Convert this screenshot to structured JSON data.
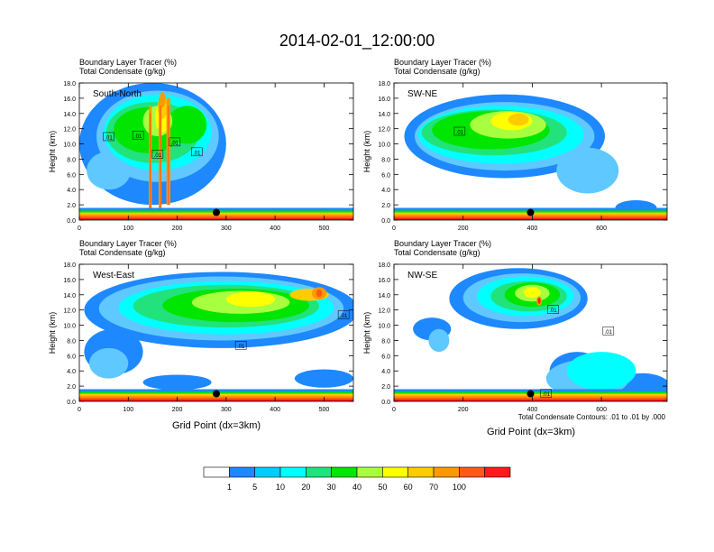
{
  "title": "2014-02-01_12:00:00",
  "panel_header_line1": "Boundary Layer Tracer   (%)",
  "panel_header_line2": "Total Condensate   (g/kg)",
  "ylabel": "Height (km)",
  "xlabel": "Grid Point (dx=3km)",
  "contour_note": "Total Condensate Contours: .01 to .01 by .000",
  "colors": {
    "blue": "#1e88ff",
    "lightblue": "#5fc8ff",
    "cyan": "#00ffff",
    "seagreen": "#22e27c",
    "green": "#00e600",
    "lime": "#a8ff40",
    "yellow": "#ffff00",
    "gold": "#ffcc00",
    "orange": "#ff9900",
    "redorange": "#ff5a1a",
    "red": "#ff1a1a"
  },
  "colorbar": {
    "labels": [
      "1",
      "5",
      "10",
      "20",
      "30",
      "40",
      "50",
      "60",
      "70",
      "100"
    ],
    "colors": [
      "#ffffff",
      "#1e88ff",
      "#00ccff",
      "#00ffff",
      "#22e27c",
      "#00e600",
      "#a8ff40",
      "#ffff00",
      "#ffcc00",
      "#ff9900",
      "#ff5a1a",
      "#ff1a1a"
    ]
  },
  "chart_data": [
    {
      "type": "heatmap",
      "name": "South-North",
      "label": "South-North",
      "x_max": 560,
      "x_ticks": [
        "0",
        "100",
        "200",
        "300",
        "400",
        "500"
      ],
      "x_tick_values": [
        0,
        100,
        200,
        300,
        400,
        500
      ],
      "y_ticks": [
        "0.0",
        "2.0",
        "4.0",
        "6.0",
        "8.0",
        "10.0",
        "12.0",
        "14.0",
        "16.0",
        "18.0"
      ],
      "y_tick_values": [
        0,
        2,
        4,
        6,
        8,
        10,
        12,
        14,
        16,
        18
      ],
      "ylim": [
        0,
        18
      ],
      "marker_x": 280,
      "contour_labels": [
        {
          "x": 60,
          "y": 10.9,
          "text": ".01"
        },
        {
          "x": 120,
          "y": 11.1,
          "text": ".01"
        },
        {
          "x": 160,
          "y": 8.6,
          "text": ".01"
        },
        {
          "x": 195,
          "y": 10.2,
          "text": ".01"
        },
        {
          "x": 240,
          "y": 8.9,
          "text": ".01"
        }
      ],
      "layers": [
        {
          "c": "blue",
          "e": [
            [
              150,
              10,
              150,
              8
            ]
          ]
        },
        {
          "c": "lightblue",
          "e": [
            [
              160,
              11,
              125,
              6
            ],
            [
              60,
              6.5,
              45,
              2.5
            ]
          ]
        },
        {
          "c": "cyan",
          "e": [
            [
              160,
              11.5,
              110,
              5
            ]
          ]
        },
        {
          "c": "seagreen",
          "e": [
            [
              150,
              11.5,
              95,
              4
            ]
          ]
        },
        {
          "c": "green",
          "e": [
            [
              140,
              11.8,
              70,
              3
            ],
            [
              220,
              12.5,
              40,
              2.5
            ]
          ]
        },
        {
          "c": "lime",
          "e": [
            [
              160,
              13,
              30,
              2
            ]
          ]
        },
        {
          "c": "yellow",
          "e": [
            [
              170,
              13.5,
              15,
              2
            ]
          ]
        },
        {
          "c": "gold",
          "e": [
            [
              170,
              14.8,
              10,
              1.5
            ]
          ]
        },
        {
          "c": "orange",
          "e": [
            [
              170,
              15.8,
              6,
              1
            ]
          ]
        },
        {
          "c": "orange",
          "s": [
            [
              142,
              148,
              1,
              15
            ],
            [
              162,
              168,
              1,
              16
            ],
            [
              178,
              186,
              2,
              16
            ]
          ]
        },
        {
          "c": "redorange",
          "s": [
            [
              144,
              146,
              1,
              14
            ],
            [
              165,
              167,
              1,
              15
            ],
            [
              181,
              183,
              2,
              15
            ]
          ]
        }
      ]
    },
    {
      "type": "heatmap",
      "name": "SW-NE",
      "label": "SW-NE",
      "x_max": 790,
      "x_ticks": [
        "0",
        "200",
        "400",
        "600"
      ],
      "x_tick_values": [
        0,
        200,
        400,
        600
      ],
      "y_ticks": [
        "0.0",
        "2.0",
        "4.0",
        "6.0",
        "8.0",
        "10.0",
        "12.0",
        "14.0",
        "16.0",
        "18.0"
      ],
      "y_tick_values": [
        0,
        2,
        4,
        6,
        8,
        10,
        12,
        14,
        16,
        18
      ],
      "ylim": [
        0,
        18
      ],
      "marker_x": 395,
      "contour_labels": [
        {
          "x": 190,
          "y": 11.6,
          "text": ".01"
        }
      ],
      "layers": [
        {
          "c": "blue",
          "e": [
            [
              320,
              11,
              290,
              5.5
            ],
            [
              700,
              1.6,
              60,
              1
            ]
          ]
        },
        {
          "c": "lightblue",
          "e": [
            [
              320,
              11,
              260,
              4.5
            ],
            [
              560,
              6.5,
              90,
              3
            ]
          ]
        },
        {
          "c": "cyan",
          "e": [
            [
              310,
              11.2,
              240,
              3.8
            ]
          ]
        },
        {
          "c": "seagreen",
          "e": [
            [
              290,
              11.5,
              210,
              3
            ]
          ]
        },
        {
          "c": "green",
          "e": [
            [
              280,
              11.8,
              170,
              2.5
            ]
          ]
        },
        {
          "c": "lime",
          "e": [
            [
              330,
              12.5,
              110,
              1.8
            ]
          ]
        },
        {
          "c": "yellow",
          "e": [
            [
              340,
              13,
              60,
              1.2
            ]
          ]
        },
        {
          "c": "gold",
          "e": [
            [
              360,
              13.2,
              30,
              0.8
            ]
          ]
        }
      ]
    },
    {
      "type": "heatmap",
      "name": "West-East",
      "label": "West-East",
      "x_max": 560,
      "x_ticks": [
        "0",
        "100",
        "200",
        "300",
        "400",
        "500"
      ],
      "x_tick_values": [
        0,
        100,
        200,
        300,
        400,
        500
      ],
      "y_ticks": [
        "0.0",
        "2.0",
        "4.0",
        "6.0",
        "8.0",
        "10.0",
        "12.0",
        "14.0",
        "16.0",
        "18.0"
      ],
      "y_tick_values": [
        0,
        2,
        4,
        6,
        8,
        10,
        12,
        14,
        16,
        18
      ],
      "ylim": [
        0,
        18
      ],
      "marker_x": 280,
      "contour_labels": [
        {
          "x": 330,
          "y": 7.3,
          "text": ".01"
        },
        {
          "x": 540,
          "y": 11.3,
          "text": ".01"
        }
      ],
      "layers": [
        {
          "c": "blue",
          "e": [
            [
              290,
              12,
              280,
              5
            ],
            [
              70,
              6.5,
              60,
              3
            ],
            [
              200,
              2.5,
              70,
              1
            ],
            [
              500,
              3,
              60,
              1.2
            ]
          ]
        },
        {
          "c": "lightblue",
          "e": [
            [
              290,
              12.2,
              250,
              4.2
            ],
            [
              60,
              5,
              40,
              2
            ]
          ]
        },
        {
          "c": "cyan",
          "e": [
            [
              300,
              12.3,
              220,
              3.5
            ]
          ]
        },
        {
          "c": "seagreen",
          "e": [
            [
              300,
              12.5,
              190,
              2.8
            ]
          ]
        },
        {
          "c": "green",
          "e": [
            [
              320,
              12.6,
              150,
              2.2
            ]
          ]
        },
        {
          "c": "lime",
          "e": [
            [
              330,
              13,
              100,
              1.5
            ]
          ]
        },
        {
          "c": "yellow",
          "e": [
            [
              350,
              13.4,
              50,
              1
            ]
          ]
        },
        {
          "c": "gold",
          "e": [
            [
              470,
              14,
              40,
              0.8
            ]
          ]
        },
        {
          "c": "orange",
          "e": [
            [
              490,
              14.2,
              15,
              0.8
            ]
          ]
        },
        {
          "c": "redorange",
          "e": [
            [
              490,
              14.2,
              6,
              0.5
            ]
          ]
        }
      ]
    },
    {
      "type": "heatmap",
      "name": "NW-SE",
      "label": "NW-SE",
      "x_max": 790,
      "x_ticks": [
        "0",
        "200",
        "400",
        "600"
      ],
      "x_tick_values": [
        0,
        200,
        400,
        600
      ],
      "y_ticks": [
        "0.0",
        "2.0",
        "4.0",
        "6.0",
        "8.0",
        "10.0",
        "12.0",
        "14.0",
        "16.0",
        "18.0"
      ],
      "y_tick_values": [
        0,
        2,
        4,
        6,
        8,
        10,
        12,
        14,
        16,
        18
      ],
      "ylim": [
        0,
        18
      ],
      "marker_x": 395,
      "contour_labels": [
        {
          "x": 460,
          "y": 12,
          "text": ".01"
        },
        {
          "x": 440,
          "y": 1,
          "text": ".01"
        },
        {
          "x": 620,
          "y": 9.2,
          "text": ".01"
        }
      ],
      "layers": [
        {
          "c": "blue",
          "e": [
            [
              360,
              13.5,
              200,
              4
            ],
            [
              110,
              9.5,
              55,
              1.5
            ],
            [
              720,
              1.2,
              90,
              2.5
            ],
            [
              530,
              4,
              80,
              2.5
            ]
          ]
        },
        {
          "c": "lightblue",
          "e": [
            [
              370,
              13.6,
              170,
              3.2
            ],
            [
              130,
              8,
              30,
              1.5
            ],
            [
              560,
              3,
              120,
              2.5
            ]
          ]
        },
        {
          "c": "cyan",
          "e": [
            [
              380,
              13.8,
              140,
              2.6
            ],
            [
              600,
              4,
              100,
              2.5
            ]
          ]
        },
        {
          "c": "seagreen",
          "e": [
            [
              390,
              13.8,
              110,
              2
            ]
          ]
        },
        {
          "c": "green",
          "e": [
            [
              400,
              14,
              80,
              1.6
            ]
          ]
        },
        {
          "c": "lime",
          "e": [
            [
              400,
              14.2,
              50,
              1.1
            ]
          ]
        },
        {
          "c": "yellow",
          "e": [
            [
              400,
              14.3,
              25,
              0.7
            ]
          ]
        },
        {
          "c": "orange",
          "e": [
            [
              420,
              13.2,
              8,
              0.6
            ]
          ]
        },
        {
          "c": "red",
          "e": [
            [
              420,
              13.2,
              4,
              0.4
            ]
          ]
        }
      ]
    }
  ]
}
